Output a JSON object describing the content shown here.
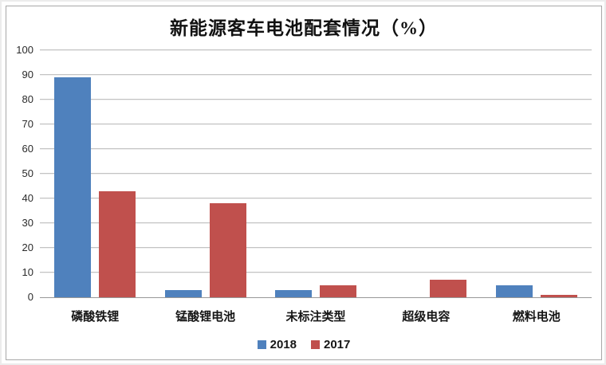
{
  "chart_data": {
    "type": "bar",
    "title": "新能源客车电池配套情况（%）",
    "categories": [
      "磷酸铁锂",
      "锰酸锂电池",
      "未标注类型",
      "超级电容",
      "燃料电池"
    ],
    "series": [
      {
        "name": "2018",
        "color": "#4f81bd",
        "values": [
          89,
          3,
          3,
          0,
          5
        ]
      },
      {
        "name": "2017",
        "color": "#c0504d",
        "values": [
          43,
          38,
          5,
          7,
          1
        ]
      }
    ],
    "xlabel": "",
    "ylabel": "",
    "ylim": [
      0,
      100
    ],
    "ytick_step": 10,
    "yticks": [
      0,
      10,
      20,
      30,
      40,
      50,
      60,
      70,
      80,
      90,
      100
    ],
    "grid": true,
    "gridline_color": "#c3c3c3",
    "axis_line_color": "#989898",
    "legend_position": "bottom",
    "legend_entries": [
      "2018",
      "2017"
    ]
  }
}
